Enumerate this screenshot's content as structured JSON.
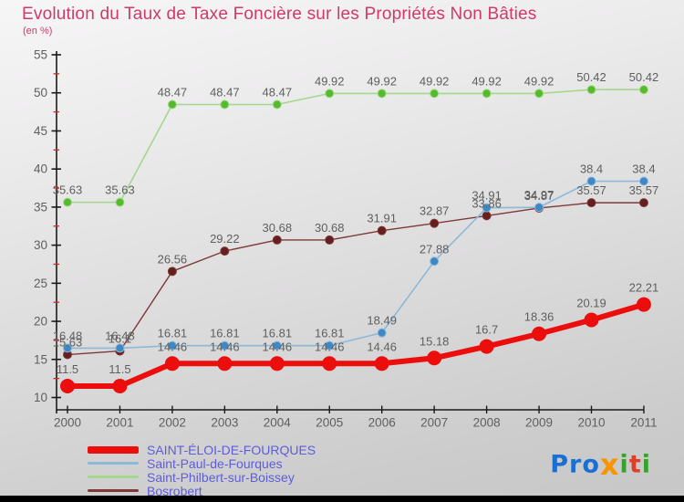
{
  "header": {
    "title": "Evolution du Taux de Taxe Foncière sur les Propriétés Non Bâties",
    "subtitle": "(en %)",
    "title_color": "#cf3a68"
  },
  "chart_data": {
    "type": "line",
    "title": "Evolution du Taux de Taxe Foncière sur les Propriétés Non Bâties",
    "ylabel": "en %",
    "xlabel": "",
    "categories": [
      "2000",
      "2001",
      "2002",
      "2003",
      "2004",
      "2005",
      "2006",
      "2007",
      "2008",
      "2009",
      "2010",
      "2011"
    ],
    "series": [
      {
        "name": "SAINT-ÉLOI-DE-FOURQUES",
        "values": [
          11.5,
          11.5,
          14.46,
          14.46,
          14.46,
          14.46,
          14.46,
          15.18,
          16.7,
          18.36,
          20.19,
          22.21
        ],
        "color": "#ec0d0d",
        "marker_color": "#ec0d0d",
        "line_width": 6,
        "marker_radius": 7.5,
        "label_offset": 14
      },
      {
        "name": "Saint-Paul-de-Fourques",
        "values": [
          16.48,
          16.48,
          16.81,
          16.81,
          16.81,
          16.81,
          18.49,
          27.88,
          34.91,
          34.97,
          38.4,
          38.4
        ],
        "color": "#8cb8da",
        "marker_color": "#3f88c5",
        "line_width": 1.6,
        "marker_radius": 4.5,
        "label_offset": 9
      },
      {
        "name": "Saint-Philbert-sur-Boissey",
        "values": [
          35.63,
          35.63,
          48.47,
          48.47,
          48.47,
          49.92,
          49.92,
          49.92,
          49.92,
          49.92,
          50.42,
          50.42
        ],
        "color": "#a3d88c",
        "marker_color": "#54bb2b",
        "line_width": 1.6,
        "marker_radius": 4.5,
        "label_offset": 9
      },
      {
        "name": "Bosrobert",
        "values": [
          15.63,
          16.1,
          26.56,
          29.22,
          30.68,
          30.68,
          31.91,
          32.87,
          33.86,
          34.87,
          35.57,
          35.57
        ],
        "color": "#7d3a37",
        "marker_color": "#63201e",
        "line_width": 1.4,
        "marker_radius": 4.5,
        "label_offset": 9
      }
    ],
    "draw_order": [
      2,
      3,
      1,
      0
    ],
    "ylim": [
      10,
      55
    ],
    "y_tick_step": 5,
    "y_minor_tick_offset": 2.5,
    "grid": false,
    "legend_position": "bottom-left",
    "axis_color": "#1a1a1a",
    "minor_tick_color": "#cc2a2a",
    "data_label_color": "#5f5f5f",
    "tick_label_color": "#5f5f5f"
  },
  "legend": {
    "text_color": "#5d5dd8"
  },
  "logo": {
    "letters": [
      {
        "text": "Pro",
        "color": "#1c6fd2"
      },
      {
        "text": "x",
        "color": "#f79400",
        "big": true
      },
      {
        "text": "i",
        "color": "#33a42a"
      },
      {
        "text": "t",
        "color": "#e23d25"
      },
      {
        "text": "i",
        "color": "#33a42a"
      }
    ]
  },
  "footer": {
    "bar_color": "#000000"
  }
}
